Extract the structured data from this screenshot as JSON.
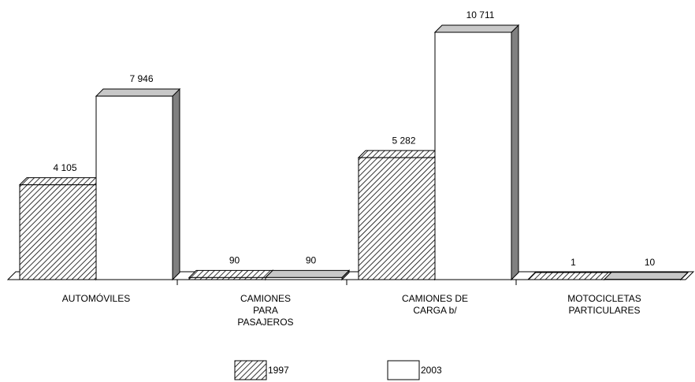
{
  "chart_data": {
    "type": "bar3d",
    "categories": [
      [
        "AUTOMÓVILES"
      ],
      [
        "CAMIONES",
        "PARA",
        "PASAJEROS"
      ],
      [
        "CAMIONES DE",
        "CARGA b/"
      ],
      [
        "MOTOCICLETAS",
        "PARTICULARES"
      ]
    ],
    "series": [
      {
        "name": "1997",
        "color": "#ffffff",
        "pattern": "hatch",
        "values": [
          4105,
          90,
          5282,
          1
        ],
        "value_labels": [
          "4 105",
          "90",
          "5 282",
          "1"
        ]
      },
      {
        "name": "2003",
        "color": "#ffffff",
        "values": [
          7946,
          90,
          10711,
          10
        ],
        "value_labels": [
          "7 946",
          "90",
          "10 711",
          "10"
        ]
      }
    ]
  }
}
